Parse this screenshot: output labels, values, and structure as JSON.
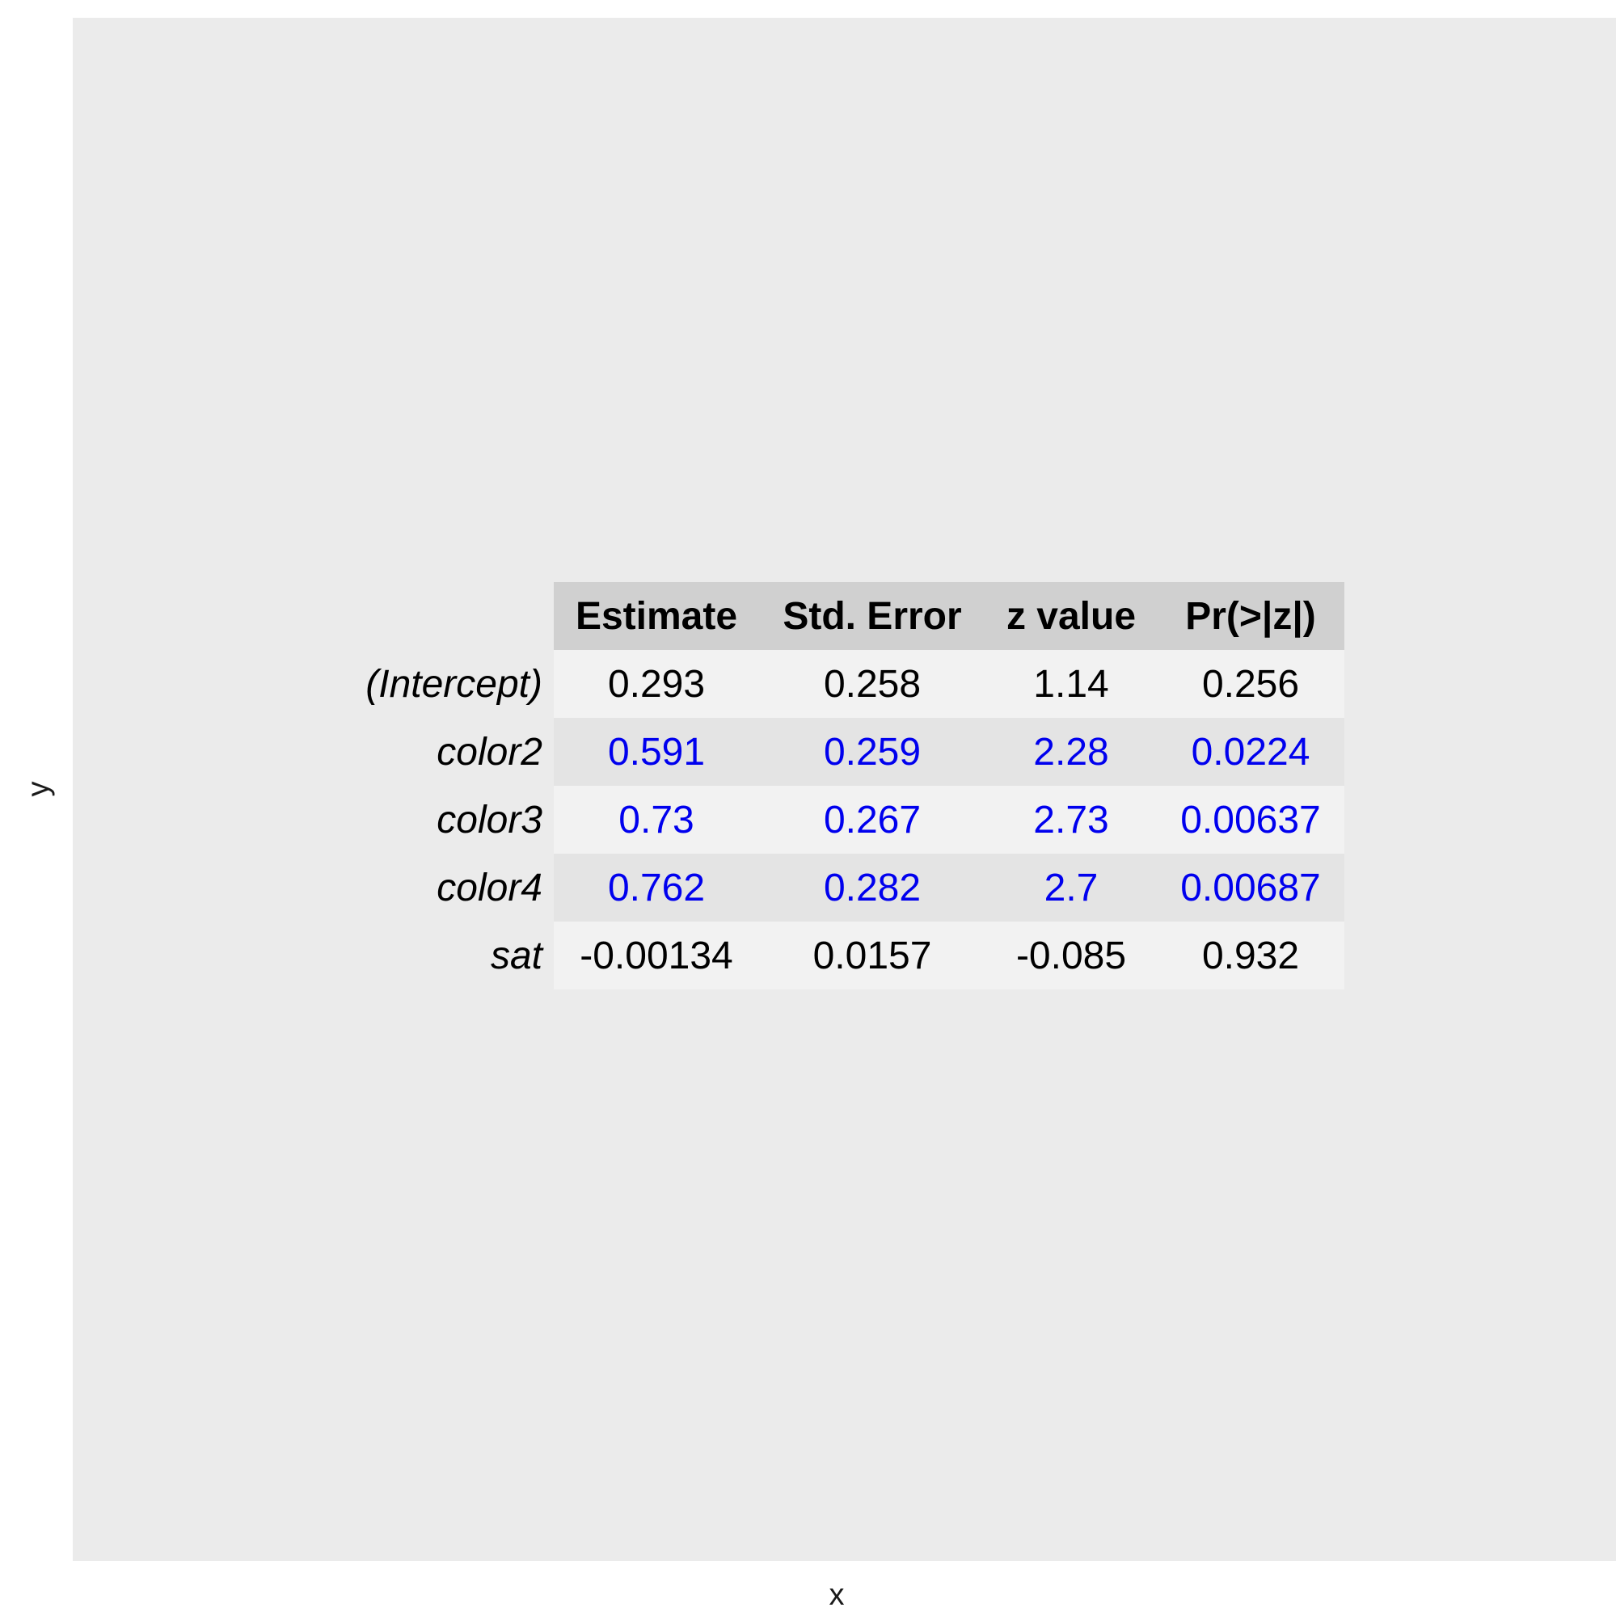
{
  "chart_data": {
    "type": "table",
    "xlabel": "x",
    "ylabel": "y",
    "columns": [
      "Estimate",
      "Std. Error",
      "z value",
      "Pr(>|z|)"
    ],
    "rows": [
      {
        "label": "(Intercept)",
        "values": [
          "0.293",
          "0.258",
          "1.14",
          "0.256"
        ],
        "highlight": false
      },
      {
        "label": "color2",
        "values": [
          "0.591",
          "0.259",
          "2.28",
          "0.0224"
        ],
        "highlight": true
      },
      {
        "label": "color3",
        "values": [
          "0.73",
          "0.267",
          "2.73",
          "0.00637"
        ],
        "highlight": true
      },
      {
        "label": "color4",
        "values": [
          "0.762",
          "0.282",
          "2.7",
          "0.00687"
        ],
        "highlight": true
      },
      {
        "label": "sat",
        "values": [
          "-0.00134",
          "0.0157",
          "-0.085",
          "0.932"
        ],
        "highlight": false
      }
    ],
    "colors": {
      "panel_background": "#ebebeb",
      "header_background": "#d0d0d0",
      "row_odd_background": "#f2f2f2",
      "row_even_background": "#e4e4e4",
      "text_default": "#000000",
      "text_highlight": "#0000ee"
    },
    "grid": false,
    "legend": "none"
  }
}
